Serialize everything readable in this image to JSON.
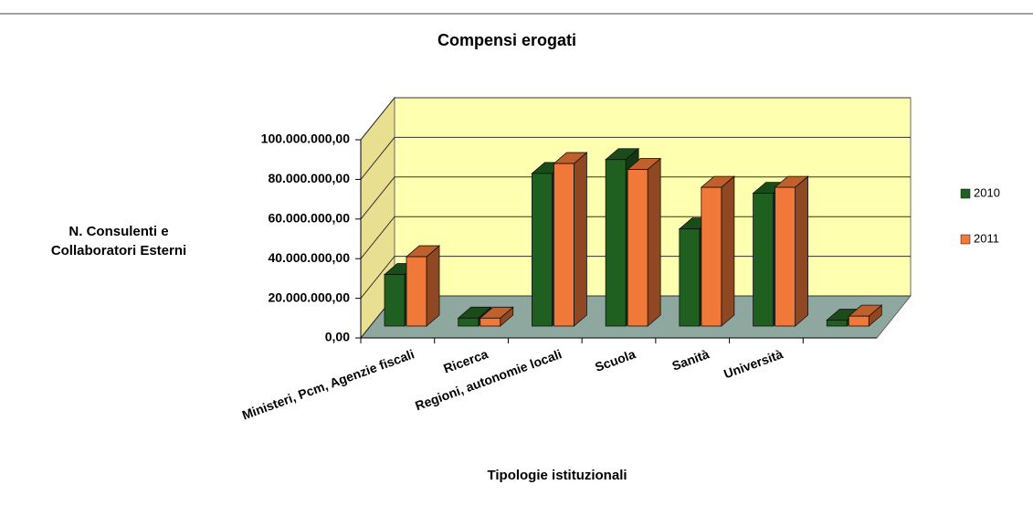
{
  "chart_data": {
    "type": "bar3d",
    "title": "Compensi erogati",
    "x_label": "Tipologie istituzionali",
    "y_label": "N. Consulenti e Collaboratori Esterni",
    "categories": [
      "Ministeri, Pcm, Agenzie fiscali",
      "Ricerca",
      "Regioni, autonomie locali",
      "Scuola",
      "Sanità",
      "Università",
      null
    ],
    "series": [
      {
        "name": "2010",
        "color": "#1f5f1f",
        "values": [
          26000000,
          4000000,
          77000000,
          84000000,
          49000000,
          67000000,
          3000000
        ]
      },
      {
        "name": "2011",
        "color": "#f07838",
        "values": [
          35000000,
          4000000,
          82000000,
          79000000,
          70000000,
          70000000,
          5000000
        ]
      }
    ],
    "ylim": [
      0,
      100000000
    ],
    "yticks": [
      {
        "value": 0,
        "label": "0,00"
      },
      {
        "value": 20000000,
        "label": "20.000.000,00"
      },
      {
        "value": 40000000,
        "label": "40.000.000,00"
      },
      {
        "value": 60000000,
        "label": "60.000.000,00"
      },
      {
        "value": 80000000,
        "label": "80.000.000,00"
      },
      {
        "value": 100000000,
        "label": "100.000.000,00"
      }
    ],
    "grid": true,
    "legend": "right"
  }
}
